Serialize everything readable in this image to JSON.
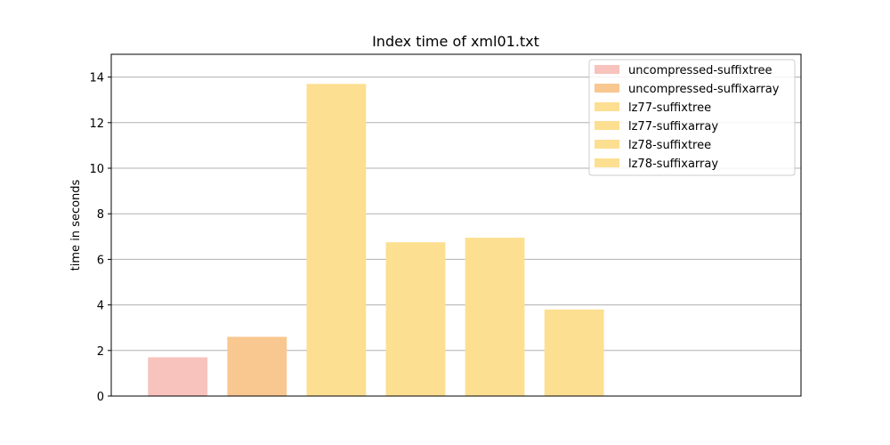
{
  "chart_data": {
    "type": "bar",
    "title": "Index time of xml01.txt",
    "xlabel": "",
    "ylabel": "time in seconds",
    "ylim": [
      0,
      15
    ],
    "yticks": [
      0,
      2,
      4,
      6,
      8,
      10,
      12,
      14
    ],
    "grid": "horizontal",
    "legend_position": "top-right",
    "x_slots": 8,
    "series": [
      {
        "name": "uncompressed-suffixtree",
        "value": 1.7,
        "color": "#f4999199"
      },
      {
        "name": "uncompressed-suffixarray",
        "value": 2.6,
        "color": "#f9c790"
      },
      {
        "name": "lz77-suffixtree",
        "value": 13.7,
        "color": "#fddf91"
      },
      {
        "name": "lz77-suffixarray",
        "value": 6.75,
        "color": "#fddf91"
      },
      {
        "name": "lz78-suffixtree",
        "value": 6.95,
        "color": "#fddf91"
      },
      {
        "name": "lz78-suffixarray",
        "value": 3.8,
        "color": "#fddf91"
      }
    ]
  }
}
